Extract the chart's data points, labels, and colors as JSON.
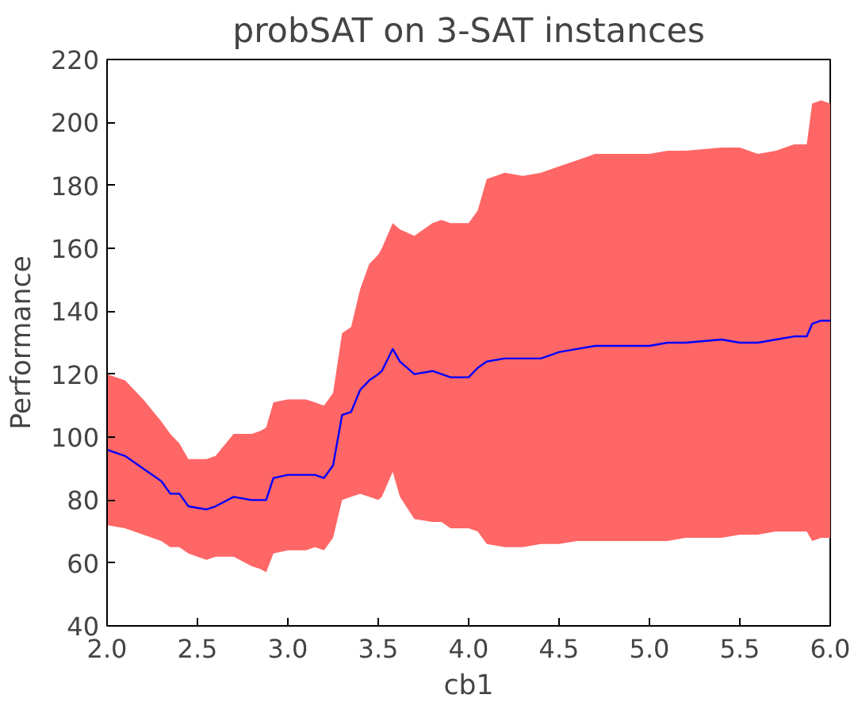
{
  "chart_data": {
    "type": "line",
    "title": "probSAT on 3-SAT instances",
    "xlabel": "cb1",
    "ylabel": "Performance",
    "x": [
      2.0,
      2.1,
      2.2,
      2.3,
      2.35,
      2.4,
      2.45,
      2.55,
      2.6,
      2.7,
      2.8,
      2.85,
      2.88,
      2.92,
      3.0,
      3.1,
      3.15,
      3.2,
      3.25,
      3.3,
      3.35,
      3.4,
      3.45,
      3.5,
      3.52,
      3.58,
      3.62,
      3.7,
      3.8,
      3.85,
      3.9,
      3.95,
      4.0,
      4.05,
      4.1,
      4.2,
      4.3,
      4.4,
      4.5,
      4.6,
      4.7,
      4.8,
      5.0,
      5.1,
      5.2,
      5.4,
      5.5,
      5.6,
      5.7,
      5.8,
      5.87,
      5.9,
      5.95,
      6.0
    ],
    "series": [
      {
        "color": "#0000ff",
        "values": [
          96,
          94,
          90,
          86,
          82,
          82,
          78,
          77,
          78,
          81,
          80,
          80,
          80,
          87,
          88,
          88,
          88,
          87,
          91,
          107,
          108,
          115,
          118,
          120,
          121,
          128,
          124,
          120,
          121,
          120,
          119,
          119,
          119,
          122,
          124,
          125,
          125,
          125,
          127,
          128,
          129,
          129,
          129,
          130,
          130,
          131,
          130,
          130,
          131,
          132,
          132,
          136,
          137,
          137
        ],
        "lower": [
          72,
          71,
          69,
          67,
          65,
          65,
          63,
          61,
          62,
          62,
          59,
          58,
          57,
          63,
          64,
          64,
          65,
          64,
          68,
          80,
          81,
          82,
          81,
          80,
          81,
          89,
          81,
          74,
          73,
          73,
          71,
          71,
          71,
          70,
          66,
          65,
          65,
          66,
          66,
          67,
          67,
          67,
          67,
          67,
          68,
          68,
          69,
          69,
          70,
          70,
          70,
          67,
          68,
          68
        ],
        "upper": [
          120,
          118,
          112,
          105,
          101,
          98,
          93,
          93,
          94,
          101,
          101,
          102,
          103,
          111,
          112,
          112,
          111,
          110,
          114,
          133,
          135,
          147,
          155,
          158,
          160,
          168,
          166,
          164,
          168,
          169,
          168,
          168,
          168,
          172,
          182,
          184,
          183,
          184,
          186,
          188,
          190,
          190,
          190,
          191,
          191,
          192,
          192,
          190,
          191,
          193,
          193,
          206,
          207,
          206
        ]
      }
    ],
    "xlim": [
      2.0,
      6.0
    ],
    "ylim": [
      40,
      220
    ],
    "xticks": [
      {
        "value": 2,
        "label": "2.0"
      },
      2.5,
      {
        "value": 3,
        "label": "3.0"
      },
      3.5,
      {
        "value": 4,
        "label": "4.0"
      },
      4.5,
      {
        "value": 5,
        "label": "5.0"
      },
      5.5,
      {
        "value": 6,
        "label": "6.0"
      }
    ],
    "yticks": [
      40,
      60,
      80,
      100,
      120,
      140,
      160,
      180,
      200,
      220
    ],
    "grid": false,
    "marker": "none",
    "line_style": "solid"
  }
}
